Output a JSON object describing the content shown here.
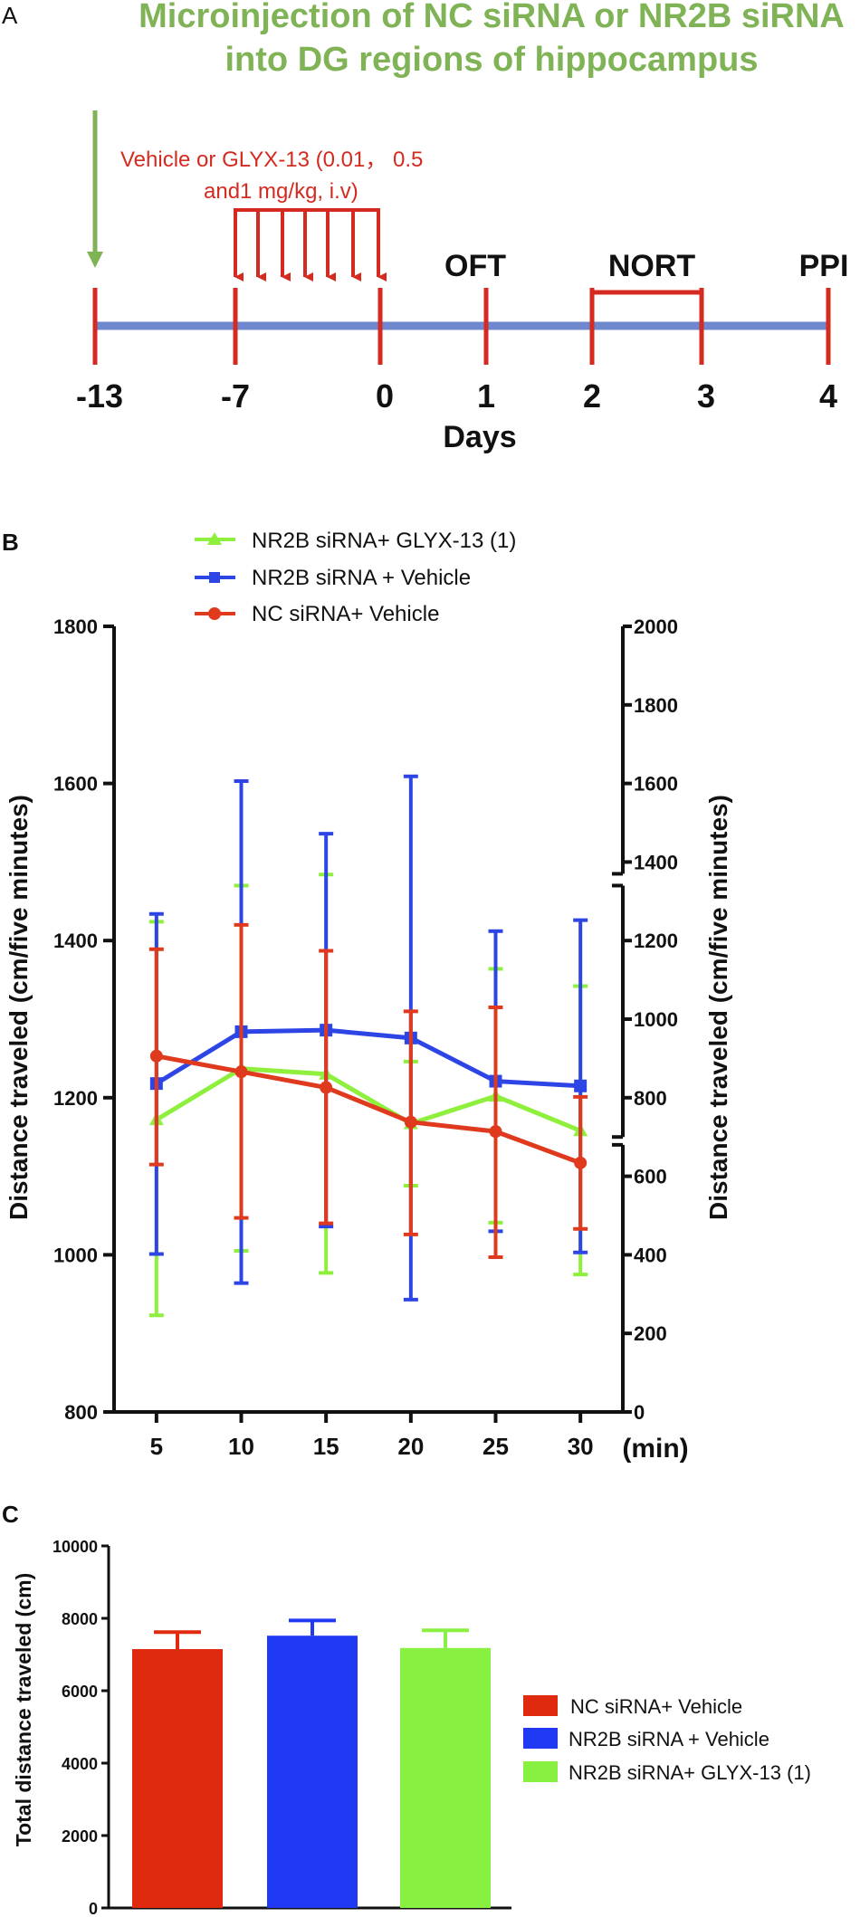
{
  "colors": {
    "green_title": "#7fb356",
    "red_timeline": "#d42a20",
    "blue_timeline": "#6f87cc",
    "black": "#111111",
    "series_red": "#e03a1e",
    "series_blue": "#2e45e6",
    "series_green": "#8ef03c",
    "bar_red": "#e02a10",
    "bar_blue": "#1f3af2",
    "bar_green": "#88f040"
  },
  "panel_a": {
    "letter": "A",
    "title_line1": "Microinjection of NC siRNA or NR2B siRNA",
    "title_line2": "into DG regions of hippocampus",
    "treatment_line1": "Vehicle or GLYX-13 (0.01， 0.5",
    "treatment_line2": "and1 mg/kg, i.v)",
    "tests": {
      "oft": "OFT",
      "nort": "NORT",
      "ppi": "PPI"
    },
    "day_ticks": [
      "-13",
      "-7",
      "0",
      "1",
      "2",
      "3",
      "4"
    ],
    "axis_label": "Days"
  },
  "panel_b": {
    "letter": "B"
  },
  "panel_c": {
    "letter": "C"
  },
  "chart_data": [
    {
      "type": "line",
      "title": "",
      "xlabel": "(min)",
      "ylabel": "Distance traveled (cm/five minutes)",
      "ylabel_right": "Distance traveled (cm/five minutes)",
      "x": [
        5,
        10,
        15,
        20,
        25,
        30
      ],
      "x_tick_labels": [
        "5",
        "10",
        "15",
        "20",
        "25",
        "30"
      ],
      "ylim": [
        800,
        1800
      ],
      "y_ticks": [
        "800",
        "1000",
        "1200",
        "1400",
        "1600",
        "1800"
      ],
      "right_axis_ticks": [
        "0",
        "200",
        "400",
        "600",
        "800",
        "1000",
        "1200",
        "1400",
        "1600",
        "1800",
        "2000"
      ],
      "legend": [
        "NR2B siRNA+ GLYX-13 (1)",
        "NR2B siRNA + Vehicle",
        "NC siRNA+ Vehicle"
      ],
      "legend_position": "top",
      "series": [
        {
          "name": "NR2B siRNA+ GLYX-13 (1)",
          "marker": "triangle",
          "values": [
            1172,
            1237,
            1230,
            1167,
            1202,
            1158
          ],
          "err_upper": [
            1424,
            1470,
            1484,
            1246,
            1364,
            1342
          ],
          "err_lower": [
            923,
            1005,
            977,
            1088,
            1041,
            975
          ]
        },
        {
          "name": "NR2B siRNA + Vehicle",
          "marker": "square",
          "values": [
            1218,
            1284,
            1286,
            1276,
            1221,
            1215
          ],
          "err_upper": [
            1434,
            1603,
            1536,
            1609,
            1412,
            1426
          ],
          "err_lower": [
            1001,
            964,
            1036,
            943,
            1030,
            1003
          ]
        },
        {
          "name": "NC siRNA+ Vehicle",
          "marker": "circle",
          "values": [
            1253,
            1233,
            1213,
            1169,
            1157,
            1117
          ],
          "err_upper": [
            1389,
            1420,
            1387,
            1310,
            1315,
            1201
          ],
          "err_lower": [
            1115,
            1047,
            1040,
            1026,
            997,
            1033
          ]
        }
      ]
    },
    {
      "type": "bar",
      "title": "",
      "xlabel": "",
      "ylabel": "Total distance traveled (cm)",
      "ylim": [
        0,
        10000
      ],
      "y_ticks": [
        "0",
        "2000",
        "4000",
        "6000",
        "8000",
        "10000"
      ],
      "categories": [
        "NC siRNA+ Vehicle",
        "NR2B siRNA + Vehicle",
        "NR2B siRNA+ GLYX-13 (1)"
      ],
      "values": [
        7150,
        7520,
        7180
      ],
      "errors": [
        470,
        420,
        490
      ],
      "legend": [
        "NC siRNA+ Vehicle",
        "NR2B siRNA + Vehicle",
        "NR2B siRNA+ GLYX-13 (1)"
      ],
      "legend_position": "right"
    }
  ]
}
